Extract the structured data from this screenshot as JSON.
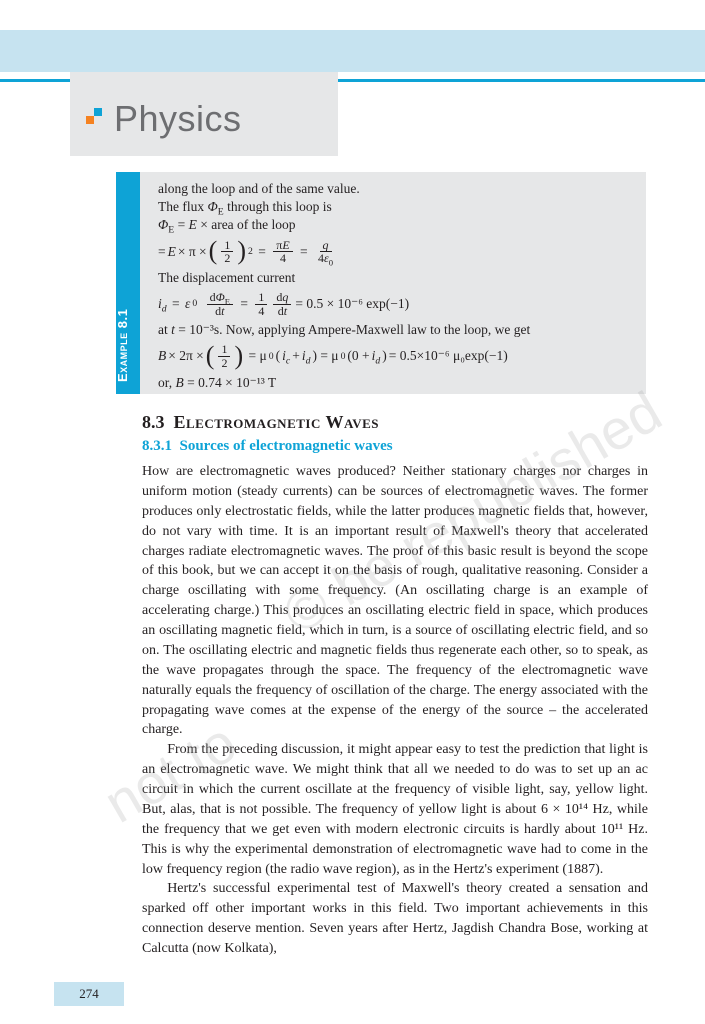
{
  "header": {
    "title": "Physics"
  },
  "example": {
    "label": "Example 8.1",
    "line1": "along the loop and of the same value.",
    "line2_a": "The flux ",
    "line2_b": " through this loop is",
    "line3_a": " = ",
    "line3_b": " × area of the loop",
    "eq1_lead": "= ",
    "eq1_rhs": " × π × ",
    "line4": "The displacement current",
    "eq2_tail": " = 0.5 × 10⁻⁶ exp(−1)",
    "line5_a": "at ",
    "line5_b": " = 10⁻³s. Now, applying Ampere-Maxwell law to the loop, we get",
    "eq3_tail": " = 0.5×10⁻⁶ μ₀exp(−1)",
    "line6_a": "or, ",
    "line6_b": " = 0.74 × 10⁻¹³ T"
  },
  "section": {
    "number": "8.3",
    "title": "Electromagnetic Waves",
    "sub_number": "8.3.1",
    "sub_title": "Sources of electromagnetic waves"
  },
  "body": {
    "p1": "How are electromagnetic waves produced? Neither stationary charges nor charges in uniform motion (steady currents) can be sources of electromagnetic waves. The former produces only electrostatic fields, while the latter produces magnetic fields that, however, do not vary with time. It is an important result of Maxwell's theory that accelerated charges radiate electromagnetic waves. The proof of this basic result is beyond the scope of this book, but we can accept it on the basis of rough, qualitative reasoning. Consider a charge oscillating with some frequency. (An oscillating charge is an example of accelerating charge.)   This produces an oscillating electric field in space, which produces an oscillating magnetic field, which in turn, is a source of oscillating electric field, and so on. The oscillating electric and magnetic fields thus regenerate each other, so to speak, as the wave propagates through the space. The frequency of the electromagnetic wave naturally equals the frequency of oscillation of the charge. The energy associated with the propagating wave comes at the expense of the energy of the source – the accelerated charge.",
    "p2": "From the preceding discussion, it might appear easy to test the prediction that light is an electromagnetic wave. We might think that all we needed to do was to set up an ac circuit in which the current oscillate at the frequency of visible light, say, yellow light. But, alas, that is not possible. The frequency of yellow light is about 6 × 10¹⁴ Hz, while the frequency that we get even with modern electronic circuits is hardly about 10¹¹ Hz. This is why the experimental demonstration of electromagnetic wave had to come in the low frequency region (the radio wave region), as in the Hertz's experiment (1887).",
    "p3": "Hertz's successful experimental test of Maxwell's theory created a sensation and sparked off other important works in this field. Two important achievements in this connection deserve mention. Seven years after Hertz, Jagdish Chandra Bose, working at Calcutta (now Kolkata),"
  },
  "watermarks": {
    "wm1": "© be republished",
    "wm2": "not to"
  },
  "page_number": "274",
  "colors": {
    "accent_blue": "#0ea3d6",
    "light_blue": "#c6e3f0",
    "grey_box": "#e6e7e8",
    "text": "#231f20",
    "orange": "#f58220"
  }
}
